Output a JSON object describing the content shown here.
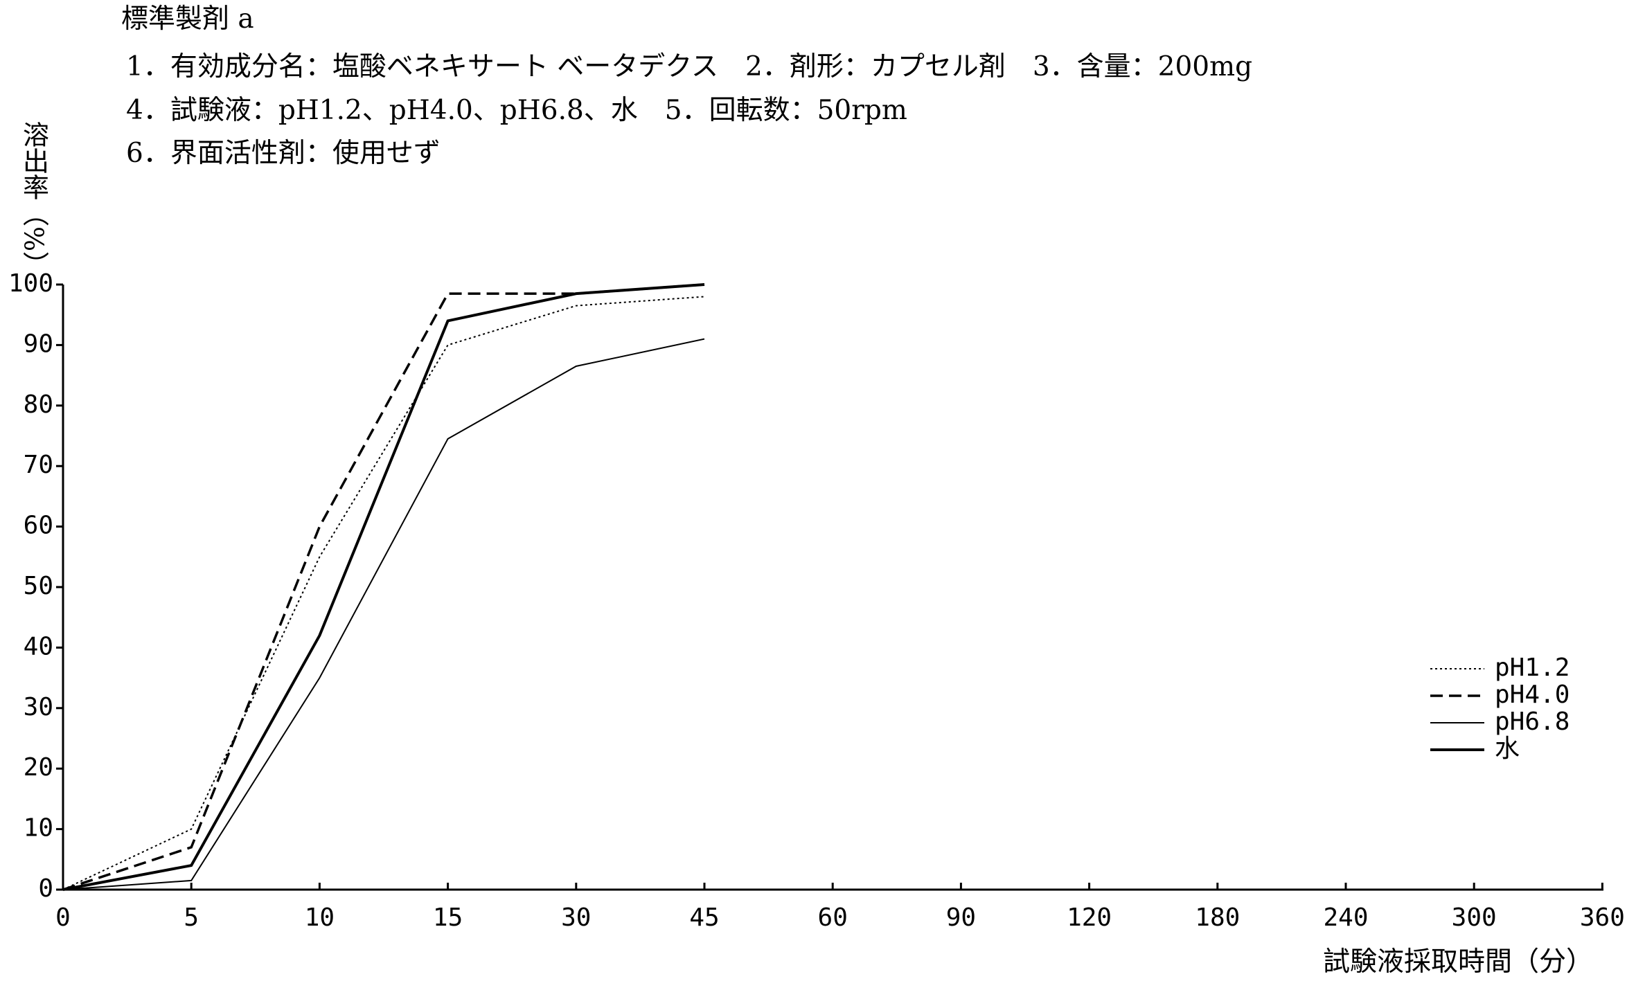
{
  "chart_data": {
    "type": "line",
    "title": "標準製剤 a",
    "subtitle": [
      "1．有効成分名：塩酸ベネキサート ベータデクス　2．剤形：カプセル剤　3．含量：200mg",
      "4．試験液：pH1.2、pH4.0、pH6.8、水　5．回転数：50rpm",
      "6．界面活性剤：使用せず"
    ],
    "y_label": "溶出率（%）",
    "x_label": "試験液採取時間（分）",
    "categories": [
      "0",
      "5",
      "10",
      "15",
      "30",
      "45",
      "60",
      "90",
      "120",
      "180",
      "240",
      "300",
      "360"
    ],
    "series": [
      {
        "name": "pH1.2",
        "color": "#000000",
        "style": "dotted",
        "values": [
          0,
          10,
          55,
          90,
          96.5,
          98,
          null,
          null,
          null,
          null,
          null,
          null,
          null
        ]
      },
      {
        "name": "pH4.0",
        "color": "#000000",
        "style": "dashed",
        "values": [
          0,
          7,
          60,
          98.5,
          98.5,
          100,
          null,
          null,
          null,
          null,
          null,
          null,
          null
        ]
      },
      {
        "name": "pH6.8",
        "color": "#000000",
        "style": "thin",
        "values": [
          0,
          1.5,
          35,
          74.5,
          86.5,
          91,
          null,
          null,
          null,
          null,
          null,
          null,
          null
        ]
      },
      {
        "name": "水",
        "color": "#000000",
        "style": "thick",
        "values": [
          0,
          4,
          42,
          94,
          98.5,
          100,
          null,
          null,
          null,
          null,
          null,
          null,
          null
        ]
      }
    ],
    "ylim": [
      0,
      100
    ],
    "yticks": [
      0,
      10,
      20,
      30,
      40,
      50,
      60,
      70,
      80,
      90,
      100
    ],
    "grid": false,
    "legend": "right"
  }
}
